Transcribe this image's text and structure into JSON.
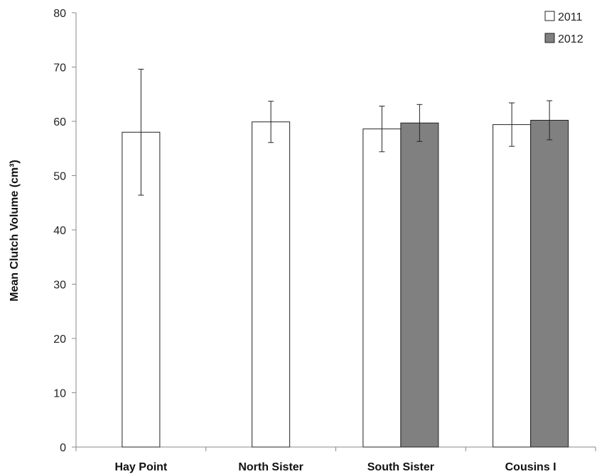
{
  "chart_data": {
    "type": "bar",
    "title": "",
    "xlabel": "",
    "ylabel": "Mean Clutch Volume (cm³)",
    "ylim": [
      0,
      80
    ],
    "yticks": [
      0,
      10,
      20,
      30,
      40,
      50,
      60,
      70,
      80
    ],
    "grid": false,
    "legend": "top-right",
    "categories": [
      "Hay Point",
      "North Sister",
      "South Sister",
      "Cousins I"
    ],
    "series": [
      {
        "name": "2011",
        "color": "#ffffff",
        "values": [
          58.0,
          59.9,
          58.6,
          59.4
        ],
        "error": [
          11.6,
          3.8,
          4.2,
          4.0
        ]
      },
      {
        "name": "2012",
        "color": "#808080",
        "values": [
          null,
          null,
          59.7,
          60.2
        ],
        "error": [
          null,
          null,
          3.4,
          3.6
        ]
      }
    ]
  }
}
